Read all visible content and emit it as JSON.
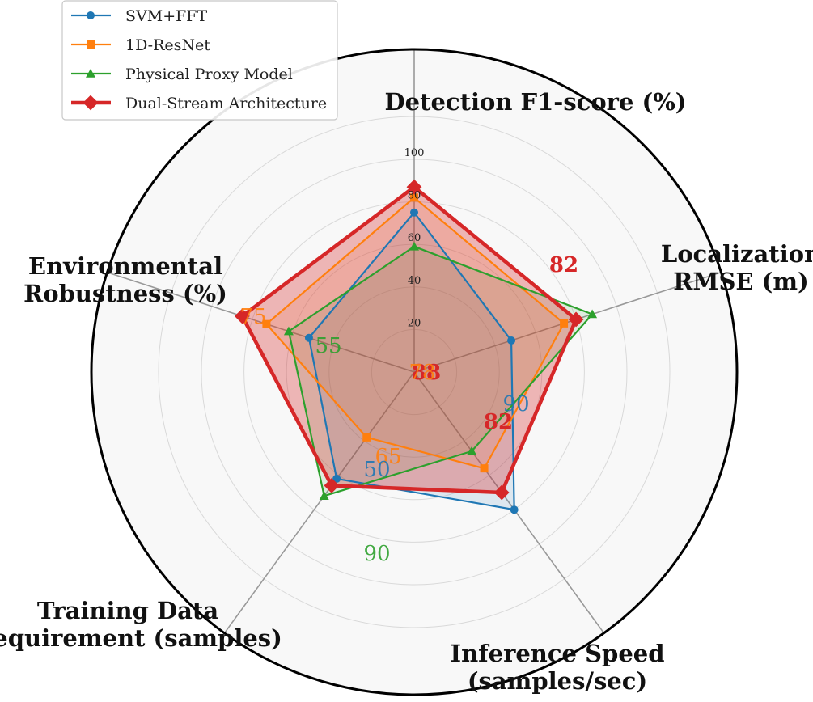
{
  "chart_data": {
    "type": "radar",
    "axes": [
      "Detection F1-score (%)",
      "Localization RMSE (m)",
      "Inference Speed (samples/sec)",
      "Training Data Requirement (samples)",
      "Environmental Robustness (%)"
    ],
    "axis_label_lines": [
      [
        "Detection F1-score (%)"
      ],
      [
        "Localization",
        "RMSE (m)"
      ],
      [
        "Inference Speed",
        "(samples/sec)"
      ],
      [
        "Training Data",
        "Requirement (samples)"
      ],
      [
        "Environmental",
        "Robustness (%)"
      ]
    ],
    "rticks": [
      20,
      40,
      60,
      80,
      100
    ],
    "rlim": [
      0,
      100
    ],
    "series": [
      {
        "name": "SVM+FFT",
        "color": "#1f77b4",
        "marker": "circle",
        "values": [
          75,
          48,
          80,
          62,
          52
        ]
      },
      {
        "name": "1D-ResNet",
        "color": "#ff7f0e",
        "marker": "square",
        "values": [
          82,
          74,
          56,
          38,
          73
        ]
      },
      {
        "name": "Physical Proxy Model",
        "color": "#2ca02c",
        "marker": "triangle",
        "values": [
          59,
          88,
          46,
          72,
          62
        ]
      },
      {
        "name": "Dual-Stream Architecture",
        "color": "#d62728",
        "marker": "diamond",
        "values": [
          87,
          80,
          70,
          66,
          85
        ]
      }
    ],
    "annotations": [
      {
        "text": "88",
        "color": "#d62728",
        "bold": true
      },
      {
        "text": "78",
        "color": "#ff7f0e",
        "bold": false
      },
      {
        "text": "82",
        "color": "#d62728",
        "bold": true
      },
      {
        "text": "90",
        "color": "#1f77b4",
        "bold": false
      },
      {
        "text": "82",
        "color": "#d62728",
        "bold": true
      },
      {
        "text": "75",
        "color": "#ff7f0e",
        "bold": false
      },
      {
        "text": "55",
        "color": "#2ca02c",
        "bold": false
      },
      {
        "text": "65",
        "color": "#ff7f0e",
        "bold": false
      },
      {
        "text": "50",
        "color": "#1f77b4",
        "bold": false
      },
      {
        "text": "90",
        "color": "#2ca02c",
        "bold": false
      }
    ],
    "legend_position": "top-left",
    "fill_series": "Dual-Stream Architecture"
  }
}
